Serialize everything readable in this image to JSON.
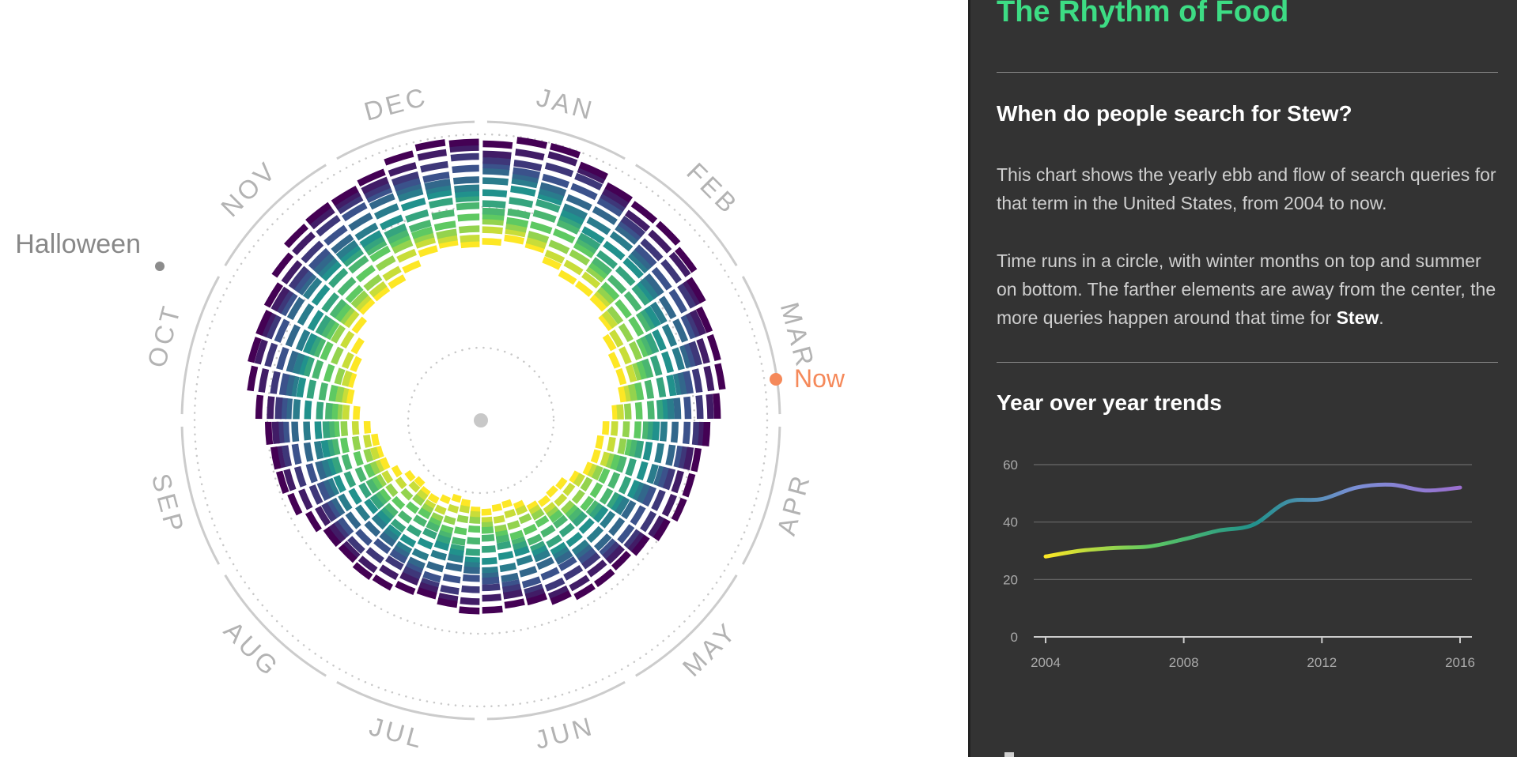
{
  "panel": {
    "app_title": "The Rhythm of Food",
    "question_prefix": "When do people search for ",
    "question_term": "Stew",
    "question_suffix": "?",
    "desc1": "This chart shows the yearly ebb and flow of search queries for that term in the United States, from 2004 to now.",
    "desc2_prefix": "Time runs in a circle, with winter months on top and summer on bottom. The farther elements are away from the center, the more queries happen around that time for ",
    "desc2_term": "Stew",
    "desc2_suffix": ".",
    "trends_heading": "Year over year trends"
  },
  "radial": {
    "months": [
      "JAN",
      "FEB",
      "MAR",
      "APR",
      "MAY",
      "JUN",
      "JUL",
      "AUG",
      "SEP",
      "OCT",
      "NOV",
      "DEC"
    ],
    "markers": [
      {
        "label": "Halloween",
        "color": "#8c8c8c"
      },
      {
        "label": "Now",
        "color": "#f5895a"
      }
    ]
  },
  "colors": {
    "panel_bg": "#333333",
    "title": "#3ddc84",
    "now_marker": "#f5895a",
    "viridis": [
      "#440154",
      "#3b528b",
      "#21918c",
      "#5ec962",
      "#fde725"
    ]
  },
  "chart_data": [
    {
      "type": "radial-heatmap",
      "description_units": "relative search interest by week, rings = years 2004 to 2016, angle = time of year",
      "years": [
        2004,
        2005,
        2006,
        2007,
        2008,
        2009,
        2010,
        2011,
        2012,
        2013,
        2014,
        2015,
        2016
      ],
      "angle_axis": [
        "JAN",
        "FEB",
        "MAR",
        "APR",
        "MAY",
        "JUN",
        "JUL",
        "AUG",
        "SEP",
        "OCT",
        "NOV",
        "DEC"
      ],
      "seasonal_profile_by_month": [
        1.0,
        0.82,
        0.65,
        0.42,
        0.26,
        0.15,
        0.1,
        0.14,
        0.3,
        0.55,
        0.78,
        0.95
      ],
      "color_scale": "viridis (older years yellow, newer years purple)"
    },
    {
      "type": "line",
      "title": "Year over year trends",
      "x": [
        2004,
        2005,
        2006,
        2007,
        2008,
        2009,
        2010,
        2011,
        2012,
        2013,
        2014,
        2015,
        2016
      ],
      "series": [
        {
          "values": [
            28,
            30,
            31,
            31.5,
            34,
            37,
            39,
            47,
            48,
            52,
            53,
            51,
            52
          ]
        }
      ],
      "xticks": [
        2004,
        2008,
        2012,
        2016
      ],
      "yticks": [
        0,
        20,
        40,
        60
      ],
      "ylim": [
        0,
        60
      ],
      "grid": true,
      "gradient": [
        "#fde725",
        "#5ec962",
        "#21918c",
        "#7b8fd6",
        "#9b6fcf"
      ]
    }
  ]
}
